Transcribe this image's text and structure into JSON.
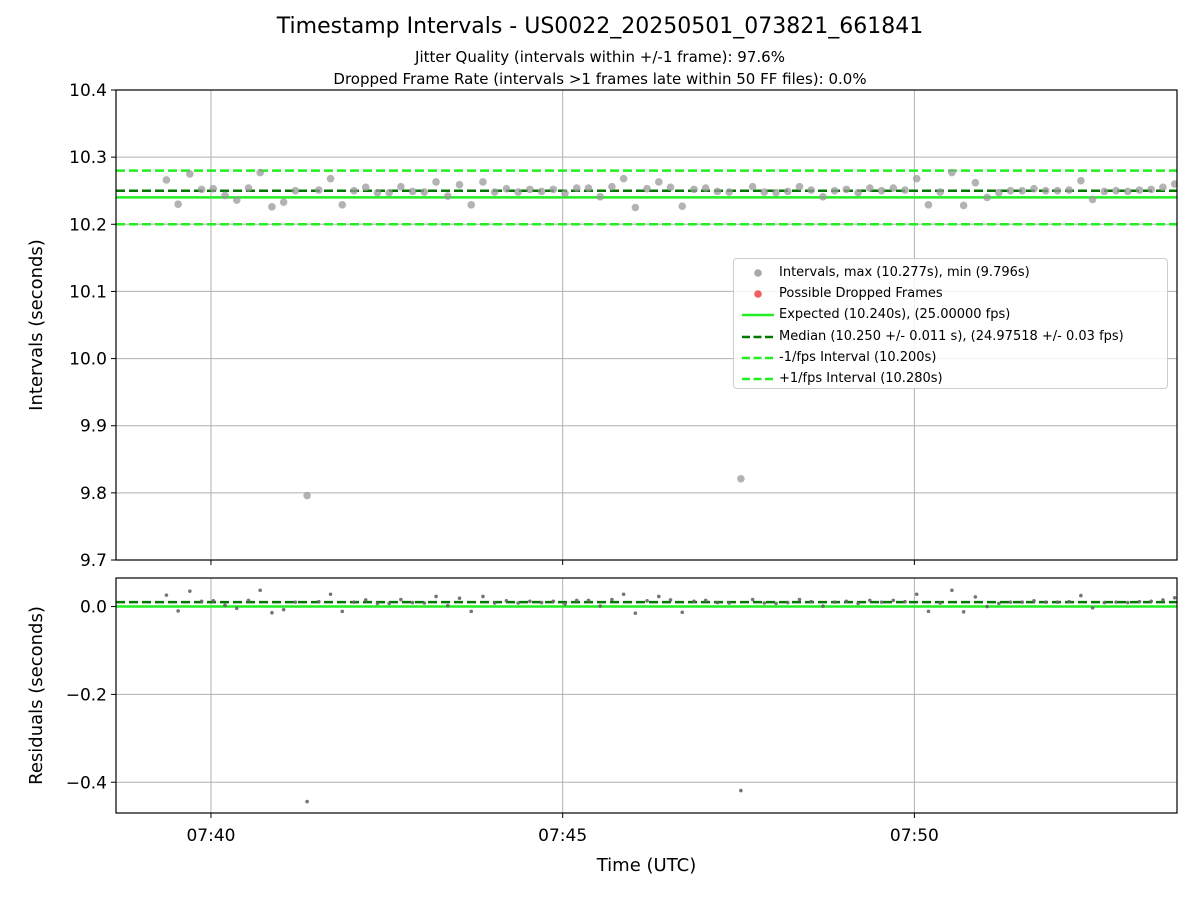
{
  "title": "Timestamp Intervals - US0022_20250501_073821_661841",
  "subtitle_jitter": "Jitter Quality (intervals within +/-1 frame): 97.6%",
  "subtitle_dropped": "Dropped Frame Rate (intervals >1 frames late within 50 FF files): 0.0%",
  "colors": {
    "expected": "#22ee22",
    "median": "#007700",
    "interval_bound": "#22ee22",
    "points": "#999999",
    "residual_points": "#666666",
    "dropped": "#ee4444",
    "grid": "#b0b0b0"
  },
  "chart_data": [
    {
      "type": "scatter",
      "panel": "top",
      "ylabel": "Intervals (seconds)",
      "xlabel": "",
      "ylim": [
        9.7,
        10.4
      ],
      "yticks": [
        9.7,
        9.8,
        9.9,
        10.0,
        10.1,
        10.2,
        10.3,
        10.4
      ],
      "ytick_labels": [
        "9.7",
        "9.8",
        "9.9",
        "10.0",
        "10.1",
        "10.2",
        "10.3",
        "10.4"
      ],
      "xlim": [
        "07:38:39",
        "07:53:44"
      ],
      "grid": true,
      "legend_position": "center-right",
      "legend": [
        {
          "label": "Intervals, max (10.277s), min (9.796s)",
          "marker": "dot",
          "color": "#999999"
        },
        {
          "label": "Possible Dropped Frames",
          "marker": "dot",
          "color": "#ee4444"
        },
        {
          "label": "Expected (10.240s), (25.00000 fps)",
          "marker": "solid",
          "color": "#22ee22"
        },
        {
          "label": "Median (10.250 +/- 0.011 s), (24.97518 +/- 0.03 fps)",
          "marker": "dashed",
          "color": "#007700"
        },
        {
          "label": "-1/fps Interval (10.200s)",
          "marker": "dashed",
          "color": "#22ee22"
        },
        {
          "label": "+1/fps Interval (10.280s)",
          "marker": "dashed",
          "color": "#22ee22"
        }
      ],
      "reference_lines": {
        "expected": 10.24,
        "median": 10.25,
        "minus_one_fps": 10.2,
        "plus_one_fps": 10.28
      },
      "series": [
        {
          "name": "Intervals, max (10.277s), min (9.796s)",
          "x": [
            "07:39:22",
            "07:39:32",
            "07:39:42",
            "07:39:52",
            "07:40:02",
            "07:40:12",
            "07:40:22",
            "07:40:32",
            "07:40:42",
            "07:40:52",
            "07:41:02",
            "07:41:12",
            "07:41:22",
            "07:41:32",
            "07:41:42",
            "07:41:52",
            "07:42:02",
            "07:42:12",
            "07:42:22",
            "07:42:32",
            "07:42:42",
            "07:42:52",
            "07:43:02",
            "07:43:12",
            "07:43:22",
            "07:43:32",
            "07:43:42",
            "07:43:52",
            "07:44:02",
            "07:44:12",
            "07:44:22",
            "07:44:32",
            "07:44:42",
            "07:44:52",
            "07:45:02",
            "07:45:12",
            "07:45:22",
            "07:45:32",
            "07:45:42",
            "07:45:52",
            "07:46:02",
            "07:46:12",
            "07:46:22",
            "07:46:32",
            "07:46:42",
            "07:46:52",
            "07:47:02",
            "07:47:12",
            "07:47:22",
            "07:47:32",
            "07:47:42",
            "07:47:52",
            "07:48:02",
            "07:48:12",
            "07:48:22",
            "07:48:32",
            "07:48:42",
            "07:48:52",
            "07:49:02",
            "07:49:12",
            "07:49:22",
            "07:49:32",
            "07:49:42",
            "07:49:52",
            "07:50:02",
            "07:50:12",
            "07:50:22",
            "07:50:32",
            "07:50:42",
            "07:50:52",
            "07:51:02",
            "07:51:12",
            "07:51:22",
            "07:51:32",
            "07:51:42",
            "07:51:52",
            "07:52:02",
            "07:52:12",
            "07:52:22",
            "07:52:32",
            "07:52:42",
            "07:52:52",
            "07:53:02",
            "07:53:12",
            "07:53:22",
            "07:53:32",
            "07:53:42"
          ],
          "values": [
            10.266,
            10.23,
            10.275,
            10.252,
            10.253,
            10.243,
            10.236,
            10.254,
            10.277,
            10.226,
            10.233,
            10.25,
            9.796,
            10.251,
            10.268,
            10.229,
            10.25,
            10.255,
            10.247,
            10.247,
            10.256,
            10.249,
            10.248,
            10.263,
            10.242,
            10.259,
            10.229,
            10.263,
            10.248,
            10.253,
            10.248,
            10.252,
            10.249,
            10.252,
            10.246,
            10.254,
            10.254,
            10.241,
            10.256,
            10.268,
            10.225,
            10.253,
            10.263,
            10.255,
            10.227,
            10.252,
            10.254,
            10.249,
            10.248,
            9.821,
            10.256,
            10.248,
            10.247,
            10.249,
            10.256,
            10.251,
            10.241,
            10.25,
            10.252,
            10.247,
            10.254,
            10.25,
            10.254,
            10.251,
            10.268,
            10.229,
            10.248,
            10.277,
            10.228,
            10.262,
            10.24,
            10.247,
            10.25,
            10.25,
            10.253,
            10.25,
            10.25,
            10.251,
            10.265,
            10.237,
            10.249,
            10.25,
            10.249,
            10.251,
            10.252,
            10.255,
            10.26
          ]
        },
        {
          "name": "Possible Dropped Frames",
          "x": [],
          "values": []
        }
      ]
    },
    {
      "type": "scatter",
      "panel": "bottom",
      "ylabel": "Residuals (seconds)",
      "xlabel": "Time (UTC)",
      "ylim": [
        -0.47,
        0.065
      ],
      "yticks": [
        -0.4,
        -0.2,
        0.0
      ],
      "ytick_labels": [
        "−0.4",
        "−0.2",
        "0.0"
      ],
      "xlim": [
        "07:38:39",
        "07:53:44"
      ],
      "xticks": [
        "07:40",
        "07:45",
        "07:50"
      ],
      "grid": true,
      "reference_lines": {
        "expected": 0.0,
        "median": 0.01
      },
      "series": [
        {
          "name": "Residuals",
          "x": [
            "07:39:22",
            "07:39:32",
            "07:39:42",
            "07:39:52",
            "07:40:02",
            "07:40:12",
            "07:40:22",
            "07:40:32",
            "07:40:42",
            "07:40:52",
            "07:41:02",
            "07:41:12",
            "07:41:22",
            "07:41:32",
            "07:41:42",
            "07:41:52",
            "07:42:02",
            "07:42:12",
            "07:42:22",
            "07:42:32",
            "07:42:42",
            "07:42:52",
            "07:43:02",
            "07:43:12",
            "07:43:22",
            "07:43:32",
            "07:43:42",
            "07:43:52",
            "07:44:02",
            "07:44:12",
            "07:44:22",
            "07:44:32",
            "07:44:42",
            "07:44:52",
            "07:45:02",
            "07:45:12",
            "07:45:22",
            "07:45:32",
            "07:45:42",
            "07:45:52",
            "07:46:02",
            "07:46:12",
            "07:46:22",
            "07:46:32",
            "07:46:42",
            "07:46:52",
            "07:47:02",
            "07:47:12",
            "07:47:22",
            "07:47:32",
            "07:47:42",
            "07:47:52",
            "07:48:02",
            "07:48:12",
            "07:48:22",
            "07:48:32",
            "07:48:42",
            "07:48:52",
            "07:49:02",
            "07:49:12",
            "07:49:22",
            "07:49:32",
            "07:49:42",
            "07:49:52",
            "07:50:02",
            "07:50:12",
            "07:50:22",
            "07:50:32",
            "07:50:42",
            "07:50:52",
            "07:51:02",
            "07:51:12",
            "07:51:22",
            "07:51:32",
            "07:51:42",
            "07:51:52",
            "07:52:02",
            "07:52:12",
            "07:52:22",
            "07:52:32",
            "07:52:42",
            "07:52:52",
            "07:53:02",
            "07:53:12",
            "07:53:22",
            "07:53:32",
            "07:53:42"
          ],
          "values": [
            0.026,
            -0.01,
            0.035,
            0.012,
            0.013,
            0.003,
            -0.004,
            0.014,
            0.037,
            -0.014,
            -0.007,
            0.01,
            -0.444,
            0.011,
            0.028,
            -0.011,
            0.01,
            0.015,
            0.007,
            0.007,
            0.016,
            0.009,
            0.008,
            0.023,
            0.002,
            0.019,
            -0.011,
            0.023,
            0.008,
            0.013,
            0.008,
            0.012,
            0.009,
            0.012,
            0.006,
            0.014,
            0.014,
            0.001,
            0.016,
            0.028,
            -0.015,
            0.013,
            0.023,
            0.015,
            -0.013,
            0.012,
            0.014,
            0.009,
            0.008,
            -0.419,
            0.016,
            0.008,
            0.007,
            0.009,
            0.016,
            0.011,
            0.001,
            0.01,
            0.012,
            0.007,
            0.014,
            0.01,
            0.014,
            0.011,
            0.028,
            -0.011,
            0.008,
            0.037,
            -0.012,
            0.022,
            0.0,
            0.007,
            0.01,
            0.01,
            0.013,
            0.01,
            0.01,
            0.011,
            0.025,
            -0.003,
            0.009,
            0.01,
            0.009,
            0.011,
            0.012,
            0.015,
            0.02
          ]
        }
      ]
    }
  ]
}
